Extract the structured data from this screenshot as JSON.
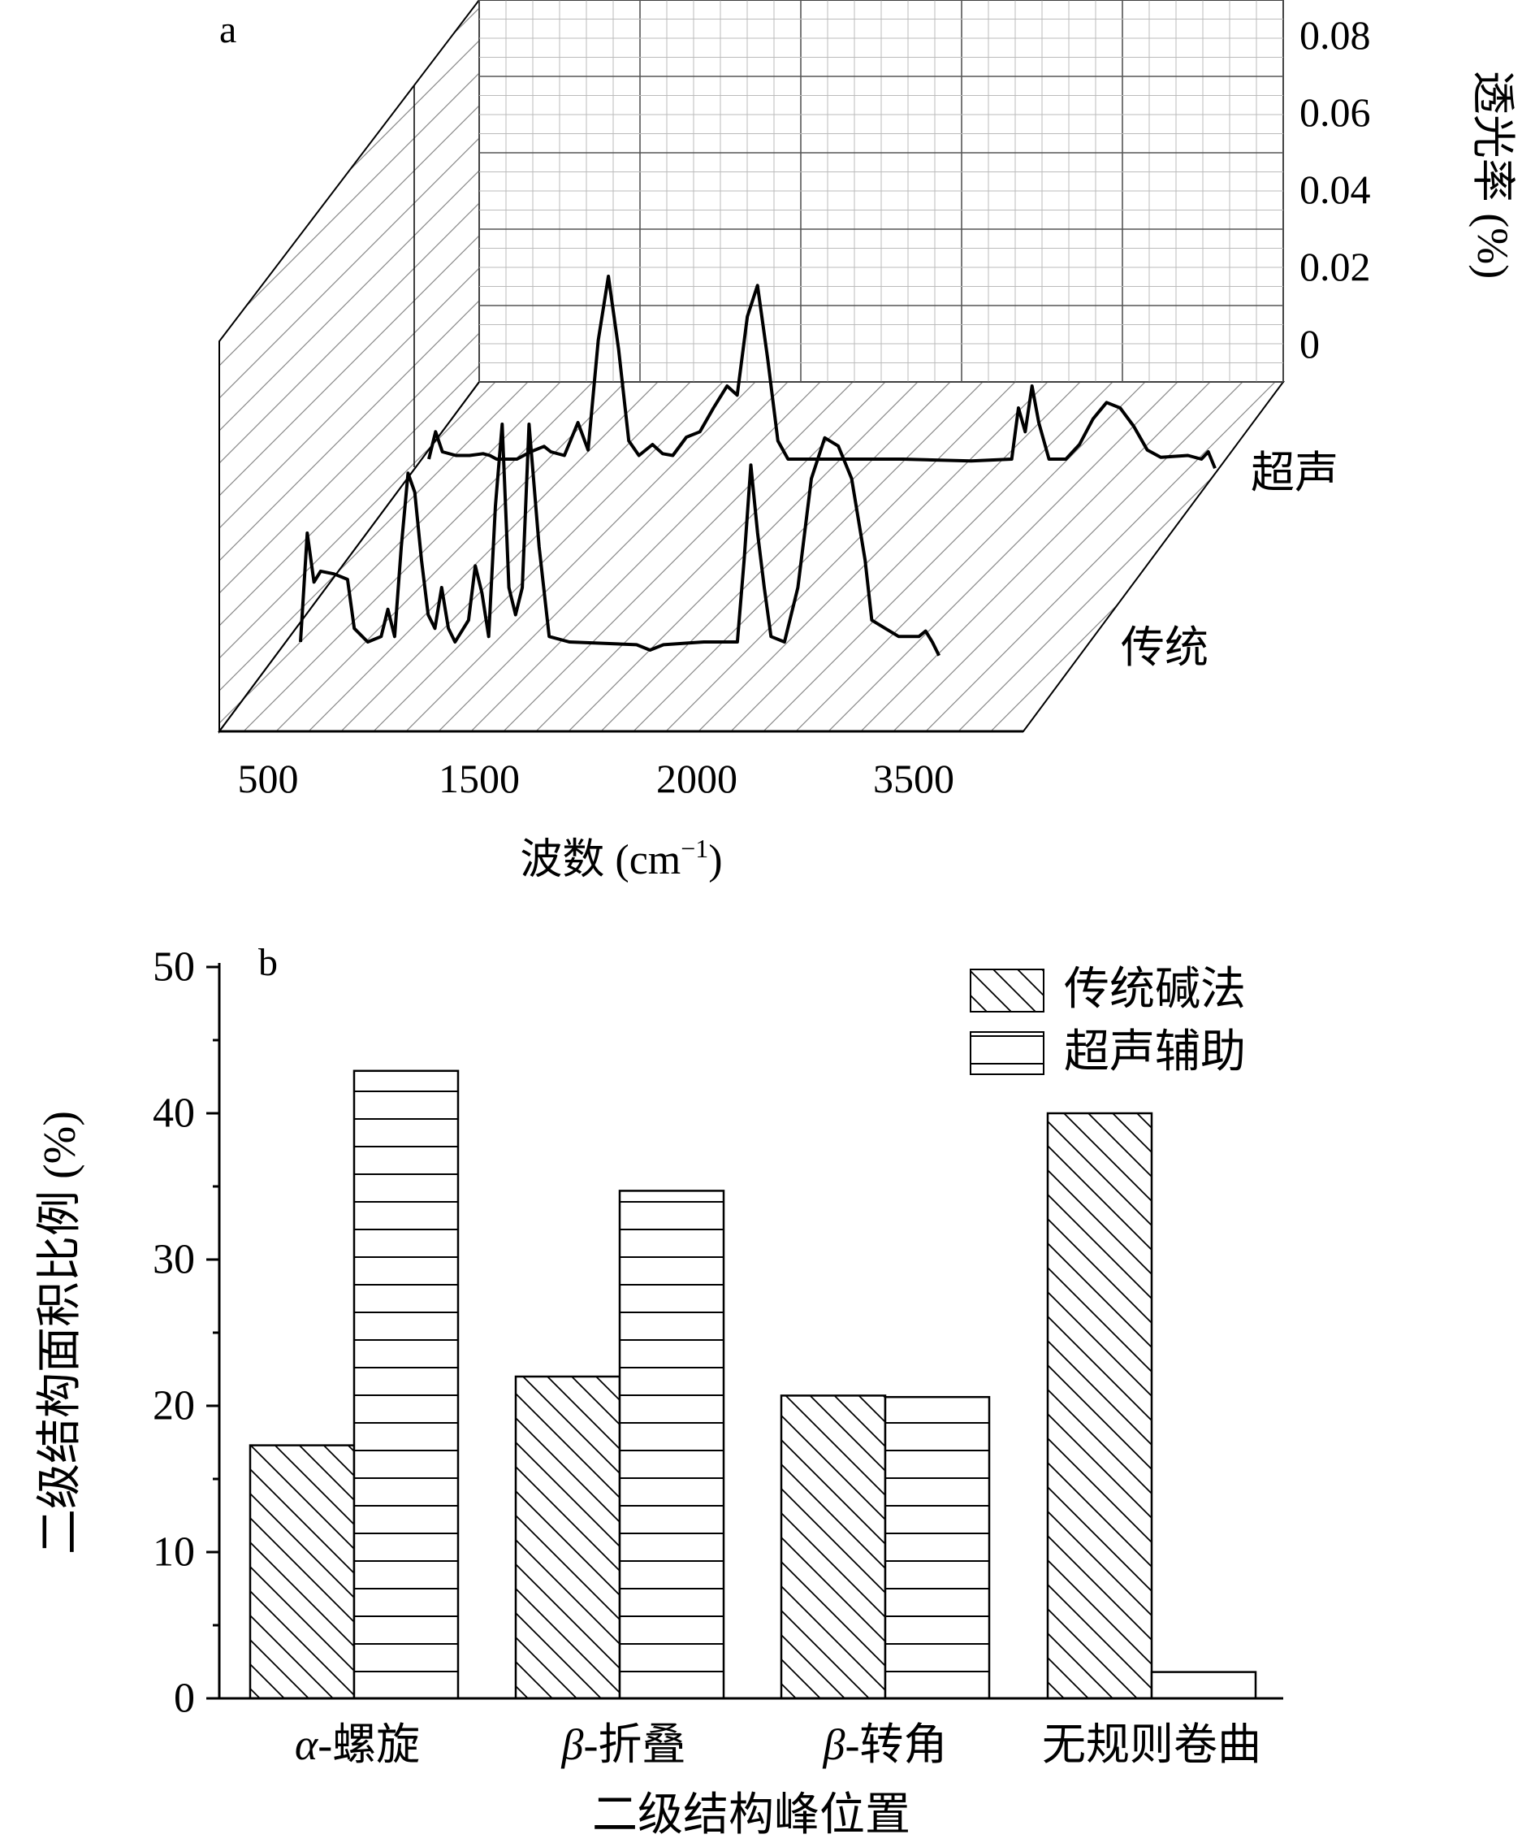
{
  "chart_data": [
    {
      "panel": "a",
      "type": "line",
      "panel_label": "a",
      "xlabel_main": "波数 (cm",
      "xlabel_sup": "−1",
      "xlabel_end": ")",
      "x_ticks": [
        "500",
        "1500",
        "2000",
        "3500"
      ],
      "z_ticks": [
        "0.08",
        "0.06",
        "0.04",
        "0.02",
        "0"
      ],
      "zlabel": "透光率 (%)",
      "series": [
        {
          "name": "超声",
          "values": [
            [
              0.0,
              0.0
            ],
            [
              0.01,
              0.15
            ],
            [
              0.02,
              0.04
            ],
            [
              0.04,
              0.02
            ],
            [
              0.06,
              0.02
            ],
            [
              0.08,
              0.03
            ],
            [
              0.09,
              0.02
            ],
            [
              0.1,
              0.0
            ],
            [
              0.13,
              0.0
            ],
            [
              0.15,
              0.04
            ],
            [
              0.17,
              0.07
            ],
            [
              0.18,
              0.04
            ],
            [
              0.2,
              0.02
            ],
            [
              0.22,
              0.2
            ],
            [
              0.235,
              0.05
            ],
            [
              0.25,
              0.65
            ],
            [
              0.265,
              1.0
            ],
            [
              0.28,
              0.6
            ],
            [
              0.295,
              0.1
            ],
            [
              0.31,
              0.02
            ],
            [
              0.33,
              0.08
            ],
            [
              0.345,
              0.03
            ],
            [
              0.36,
              0.02
            ],
            [
              0.38,
              0.12
            ],
            [
              0.4,
              0.15
            ],
            [
              0.42,
              0.28
            ],
            [
              0.44,
              0.4
            ],
            [
              0.455,
              0.35
            ],
            [
              0.47,
              0.78
            ],
            [
              0.485,
              0.95
            ],
            [
              0.5,
              0.55
            ],
            [
              0.515,
              0.1
            ],
            [
              0.53,
              0.0
            ],
            [
              0.6,
              0.0
            ],
            [
              0.7,
              0.0
            ],
            [
              0.8,
              -0.01
            ],
            [
              0.86,
              0.0
            ],
            [
              0.87,
              0.28
            ],
            [
              0.88,
              0.15
            ],
            [
              0.89,
              0.4
            ],
            [
              0.9,
              0.2
            ],
            [
              0.915,
              0.0
            ],
            [
              0.94,
              0.0
            ],
            [
              0.96,
              0.08
            ],
            [
              0.98,
              0.22
            ],
            [
              1.0,
              0.31
            ],
            [
              1.02,
              0.28
            ],
            [
              1.04,
              0.18
            ],
            [
              1.06,
              0.05
            ],
            [
              1.08,
              0.01
            ],
            [
              1.12,
              0.02
            ],
            [
              1.14,
              0.0
            ],
            [
              1.15,
              0.04
            ],
            [
              1.16,
              -0.05
            ]
          ]
        },
        {
          "name": "传统",
          "values": [
            [
              0.0,
              0.0
            ],
            [
              0.01,
              0.4
            ],
            [
              0.02,
              0.22
            ],
            [
              0.03,
              0.26
            ],
            [
              0.05,
              0.25
            ],
            [
              0.07,
              0.23
            ],
            [
              0.08,
              0.05
            ],
            [
              0.1,
              0.0
            ],
            [
              0.12,
              0.02
            ],
            [
              0.13,
              0.12
            ],
            [
              0.14,
              0.02
            ],
            [
              0.15,
              0.35
            ],
            [
              0.16,
              0.62
            ],
            [
              0.17,
              0.55
            ],
            [
              0.18,
              0.3
            ],
            [
              0.19,
              0.1
            ],
            [
              0.2,
              0.05
            ],
            [
              0.21,
              0.2
            ],
            [
              0.22,
              0.05
            ],
            [
              0.23,
              0.0
            ],
            [
              0.25,
              0.08
            ],
            [
              0.26,
              0.28
            ],
            [
              0.27,
              0.18
            ],
            [
              0.28,
              0.02
            ],
            [
              0.29,
              0.5
            ],
            [
              0.3,
              0.8
            ],
            [
              0.31,
              0.2
            ],
            [
              0.32,
              0.1
            ],
            [
              0.33,
              0.2
            ],
            [
              0.34,
              0.8
            ],
            [
              0.355,
              0.35
            ],
            [
              0.37,
              0.02
            ],
            [
              0.4,
              0.0
            ],
            [
              0.5,
              -0.01
            ],
            [
              0.52,
              -0.03
            ],
            [
              0.54,
              -0.01
            ],
            [
              0.6,
              0.0
            ],
            [
              0.65,
              0.0
            ],
            [
              0.66,
              0.3
            ],
            [
              0.67,
              0.65
            ],
            [
              0.68,
              0.4
            ],
            [
              0.69,
              0.2
            ],
            [
              0.7,
              0.02
            ],
            [
              0.72,
              0.0
            ],
            [
              0.74,
              0.2
            ],
            [
              0.76,
              0.6
            ],
            [
              0.78,
              0.75
            ],
            [
              0.8,
              0.72
            ],
            [
              0.82,
              0.6
            ],
            [
              0.84,
              0.3
            ],
            [
              0.85,
              0.08
            ],
            [
              0.87,
              0.05
            ],
            [
              0.89,
              0.02
            ],
            [
              0.92,
              0.02
            ],
            [
              0.93,
              0.04
            ],
            [
              0.94,
              0.0
            ],
            [
              0.95,
              -0.05
            ]
          ]
        }
      ]
    },
    {
      "panel": "b",
      "type": "bar",
      "panel_label": "b",
      "categories": [
        {
          "prefix": "α",
          "rest": "-螺旋"
        },
        {
          "prefix": "β",
          "rest": "-折叠"
        },
        {
          "prefix": "β",
          "rest": "-转角"
        },
        {
          "prefix": "",
          "rest": "无规则卷曲"
        }
      ],
      "series": [
        {
          "name": "传统碱法",
          "pattern": "diagonal",
          "values": [
            17.3,
            22.0,
            20.7,
            40.0
          ]
        },
        {
          "name": "超声辅助",
          "pattern": "horizontal",
          "values": [
            42.9,
            34.7,
            20.6,
            1.8
          ]
        }
      ],
      "xlabel": "二级结构峰位置",
      "ylabel": "二级结构面积比例 (%)",
      "ylim": [
        0,
        50
      ],
      "y_ticks": [
        "0",
        "10",
        "20",
        "30",
        "40",
        "50"
      ],
      "legend_position": "top-right"
    }
  ]
}
